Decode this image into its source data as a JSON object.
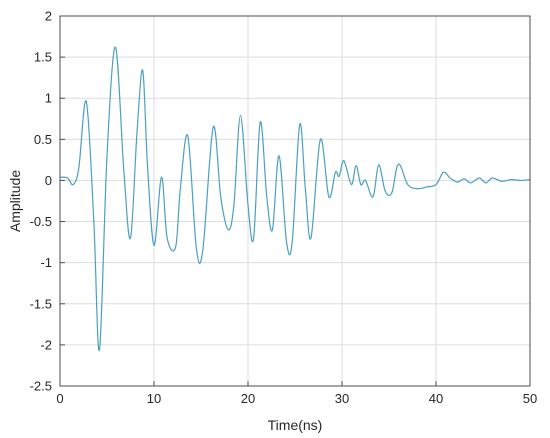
{
  "chart_data": {
    "type": "line",
    "title": "",
    "xlabel": "Time(ns)",
    "ylabel": "Amplitude",
    "xlim": [
      0,
      50
    ],
    "ylim": [
      -2.5,
      2
    ],
    "x_ticks": [
      0,
      10,
      20,
      30,
      40,
      50
    ],
    "x_tick_labels": [
      "0",
      "10",
      "20",
      "30",
      "40",
      "50"
    ],
    "y_ticks": [
      2,
      1.5,
      1,
      0.5,
      0,
      -0.5,
      -1,
      -1.5,
      -2,
      -2.5
    ],
    "y_tick_labels": [
      "2",
      "1.5",
      "1",
      "0.5",
      "0",
      "-0.5",
      "-1",
      "-1.5",
      "-2",
      "-2.5"
    ],
    "grid": true,
    "line_color": "#4a9fc0",
    "series": [
      {
        "x": [
          0,
          0.8,
          1.4,
          2.0,
          2.8,
          3.6,
          4.2,
          5.0,
          5.9,
          6.8,
          7.5,
          8.2,
          8.8,
          9.3,
          10.0,
          10.8,
          11.4,
          12.3,
          12.8,
          13.6,
          14.5,
          15.2,
          16.3,
          17.1,
          17.9,
          18.5,
          19.2,
          20.0,
          20.6,
          21.3,
          22.0,
          22.6,
          23.3,
          24.1,
          24.7,
          25.5,
          26.1,
          26.7,
          27.7,
          28.6,
          29.3,
          29.7,
          30.2,
          31.0,
          31.5,
          32.0,
          32.5,
          33.3,
          33.9,
          34.6,
          35.3,
          36.0,
          37.0,
          38.0,
          39.0,
          40.0,
          40.8,
          41.5,
          42.3,
          43.0,
          43.7,
          44.6,
          45.3,
          46.0,
          47.0,
          48.0,
          49.0,
          50.0
        ],
        "y": [
          0.04,
          0.03,
          -0.05,
          0.15,
          0.96,
          -0.5,
          -2.06,
          0.3,
          1.62,
          0.1,
          -0.7,
          0.6,
          1.34,
          0.2,
          -0.79,
          0.04,
          -0.7,
          -0.81,
          -0.1,
          0.54,
          -0.82,
          -0.84,
          0.65,
          -0.2,
          -0.6,
          -0.3,
          0.79,
          -0.3,
          -0.7,
          0.71,
          -0.2,
          -0.6,
          0.3,
          -0.75,
          -0.75,
          0.68,
          -0.1,
          -0.7,
          0.5,
          -0.2,
          0.1,
          0.05,
          0.24,
          -0.05,
          0.18,
          -0.05,
          0.0,
          -0.2,
          0.19,
          -0.13,
          -0.15,
          0.2,
          -0.05,
          -0.1,
          -0.08,
          -0.05,
          0.1,
          0.03,
          -0.02,
          0.02,
          -0.03,
          0.03,
          -0.03,
          0.03,
          -0.01,
          0.01,
          0.0,
          0.01
        ]
      }
    ]
  }
}
